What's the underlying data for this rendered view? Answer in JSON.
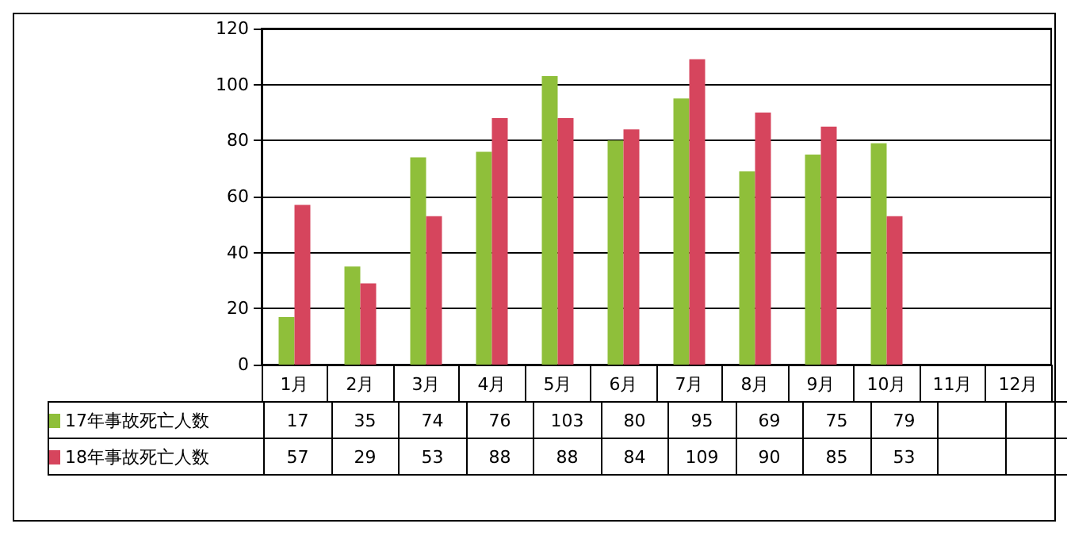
{
  "chart_data": {
    "type": "bar",
    "categories": [
      "1月",
      "2月",
      "3月",
      "4月",
      "5月",
      "6月",
      "7月",
      "8月",
      "9月",
      "10月",
      "11月",
      "12月"
    ],
    "series": [
      {
        "name": "17年事故死亡人数",
        "color": "#8fbf3a",
        "values": [
          17,
          35,
          74,
          76,
          103,
          80,
          95,
          69,
          75,
          79,
          null,
          null
        ]
      },
      {
        "name": "18年事故死亡人数",
        "color": "#d6455d",
        "values": [
          57,
          29,
          53,
          88,
          88,
          84,
          109,
          90,
          85,
          53,
          null,
          null
        ]
      }
    ],
    "ylim": [
      0,
      120
    ],
    "yticks": [
      0,
      20,
      40,
      60,
      80,
      100,
      120
    ],
    "grid": "y",
    "legend": "bottom",
    "data_labels": true
  }
}
